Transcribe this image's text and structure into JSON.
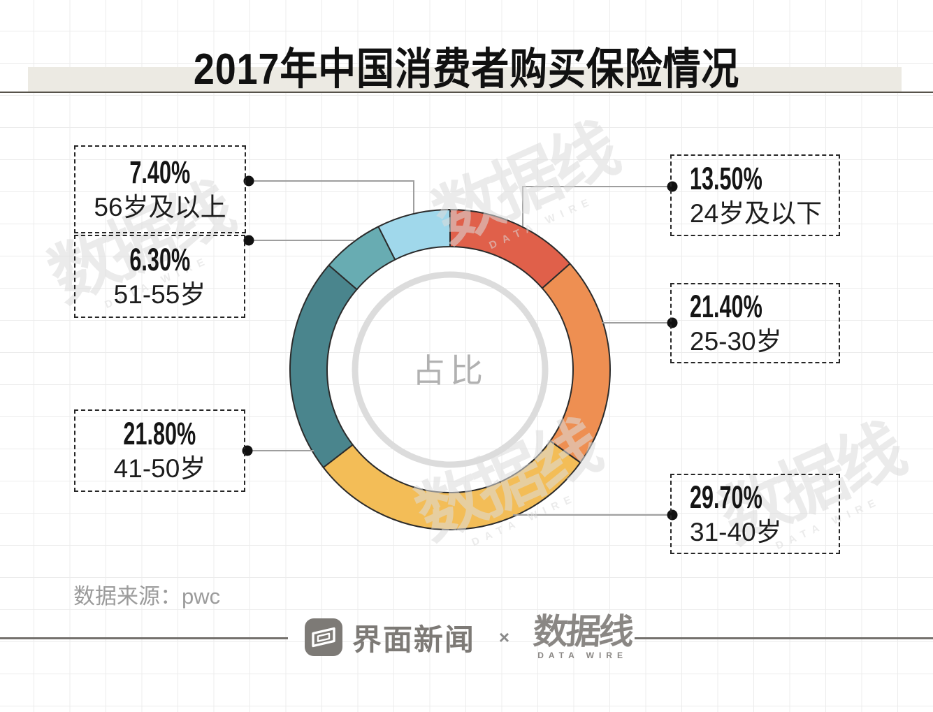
{
  "title": "2017年中国消费者购买保险情况",
  "chart_data": {
    "type": "pie",
    "variant": "donut",
    "title": "2017年中国消费者购买保险情况",
    "center_label": "占比",
    "unit": "%",
    "start_angle_deg": 0,
    "direction": "clockwise",
    "legend_position": "callout-labels",
    "segments": [
      {
        "label": "24岁及以下",
        "value": 13.5,
        "display": "13.50%",
        "color": "#e0604a"
      },
      {
        "label": "25-30岁",
        "value": 21.4,
        "display": "21.40%",
        "color": "#ee8f52"
      },
      {
        "label": "31-40岁",
        "value": 29.7,
        "display": "29.70%",
        "color": "#f3bd57"
      },
      {
        "label": "41-50岁",
        "value": 21.8,
        "display": "21.80%",
        "color": "#4a858d"
      },
      {
        "label": "51-55岁",
        "value": 6.3,
        "display": "6.30%",
        "color": "#68acb2"
      },
      {
        "label": "56岁及以上",
        "value": 7.4,
        "display": "7.40%",
        "color": "#a0d8eb"
      }
    ]
  },
  "source": {
    "label": "数据来源：pwc"
  },
  "footer": {
    "jiemian_name": "界面新闻",
    "separator": "×",
    "datawire_name": "数据线",
    "datawire_caption": "DATA WIRE"
  },
  "watermark": {
    "text": "数据线",
    "caption": "DATA WIRE"
  },
  "colors": {
    "title_band": "#eceae3",
    "title_rule": "#57534b",
    "grid_line": "#ececec",
    "leader_line": "#9e9e9e",
    "leader_dot": "#111111",
    "segment_outline": "#2b2b2b",
    "inner_ring": "#dcdcdc",
    "center_label": "#b1b1b1",
    "footer_gray": "#7d7a76"
  }
}
